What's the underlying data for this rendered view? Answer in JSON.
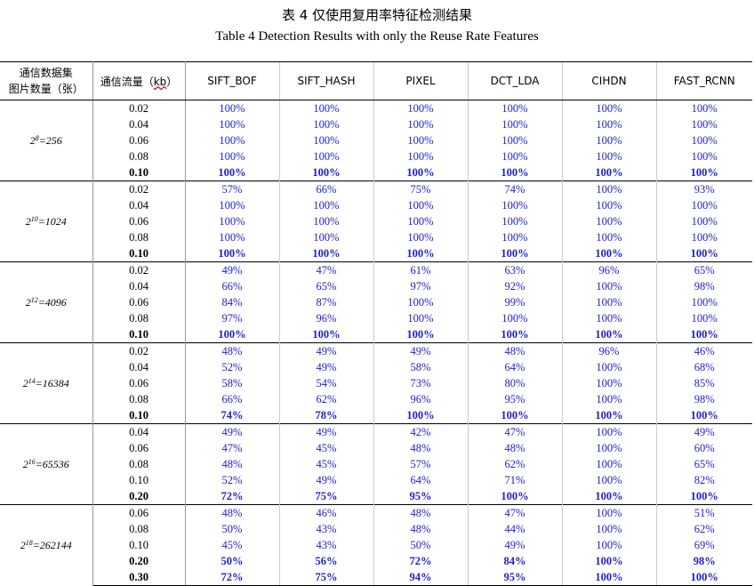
{
  "title_cn": "表 4 仅使用复用率特征检测结果",
  "title_en": "Table 4 Detection Results with only the Reuse Rate Features",
  "headers": {
    "desc_line1": "通信数据集",
    "desc_line2": "图片数量（张）",
    "traffic_label": "通信流量（",
    "traffic_unit": "kb",
    "traffic_close": "）",
    "methods": [
      "SIFT_BOF",
      "SIFT_HASH",
      "PIXEL",
      "DCT_LDA",
      "CIHDN",
      "FAST_RCNN"
    ]
  },
  "groups": [
    {
      "set_base": "2",
      "set_exp": "8",
      "set_rest": "=256",
      "rows": [
        {
          "traffic": "0.02",
          "bold": false,
          "values": [
            "100%",
            "100%",
            "100%",
            "100%",
            "100%",
            "100%"
          ]
        },
        {
          "traffic": "0.04",
          "bold": false,
          "values": [
            "100%",
            "100%",
            "100%",
            "100%",
            "100%",
            "100%"
          ]
        },
        {
          "traffic": "0.06",
          "bold": false,
          "values": [
            "100%",
            "100%",
            "100%",
            "100%",
            "100%",
            "100%"
          ]
        },
        {
          "traffic": "0.08",
          "bold": false,
          "values": [
            "100%",
            "100%",
            "100%",
            "100%",
            "100%",
            "100%"
          ]
        },
        {
          "traffic": "0.10",
          "bold": true,
          "values": [
            "100%",
            "100%",
            "100%",
            "100%",
            "100%",
            "100%"
          ]
        }
      ]
    },
    {
      "set_base": "2",
      "set_exp": "10",
      "set_rest": "=1024",
      "rows": [
        {
          "traffic": "0.02",
          "bold": false,
          "values": [
            "57%",
            "66%",
            "75%",
            "74%",
            "100%",
            "93%"
          ]
        },
        {
          "traffic": "0.04",
          "bold": false,
          "values": [
            "100%",
            "100%",
            "100%",
            "100%",
            "100%",
            "100%"
          ]
        },
        {
          "traffic": "0.06",
          "bold": false,
          "values": [
            "100%",
            "100%",
            "100%",
            "100%",
            "100%",
            "100%"
          ]
        },
        {
          "traffic": "0.08",
          "bold": false,
          "values": [
            "100%",
            "100%",
            "100%",
            "100%",
            "100%",
            "100%"
          ]
        },
        {
          "traffic": "0.10",
          "bold": true,
          "values": [
            "100%",
            "100%",
            "100%",
            "100%",
            "100%",
            "100%"
          ]
        }
      ]
    },
    {
      "set_base": "2",
      "set_exp": "12",
      "set_rest": "=4096",
      "rows": [
        {
          "traffic": "0.02",
          "bold": false,
          "values": [
            "49%",
            "47%",
            "61%",
            "63%",
            "96%",
            "65%"
          ]
        },
        {
          "traffic": "0.04",
          "bold": false,
          "values": [
            "66%",
            "65%",
            "97%",
            "92%",
            "100%",
            "98%"
          ]
        },
        {
          "traffic": "0.06",
          "bold": false,
          "values": [
            "84%",
            "87%",
            "100%",
            "99%",
            "100%",
            "100%"
          ]
        },
        {
          "traffic": "0.08",
          "bold": false,
          "values": [
            "97%",
            "96%",
            "100%",
            "100%",
            "100%",
            "100%"
          ]
        },
        {
          "traffic": "0.10",
          "bold": true,
          "values": [
            "100%",
            "100%",
            "100%",
            "100%",
            "100%",
            "100%"
          ]
        }
      ]
    },
    {
      "set_base": "2",
      "set_exp": "14",
      "set_rest": "=16384",
      "rows": [
        {
          "traffic": "0.02",
          "bold": false,
          "values": [
            "48%",
            "49%",
            "49%",
            "48%",
            "96%",
            "46%"
          ]
        },
        {
          "traffic": "0.04",
          "bold": false,
          "values": [
            "52%",
            "49%",
            "58%",
            "64%",
            "100%",
            "68%"
          ]
        },
        {
          "traffic": "0.06",
          "bold": false,
          "values": [
            "58%",
            "54%",
            "73%",
            "80%",
            "100%",
            "85%"
          ]
        },
        {
          "traffic": "0.08",
          "bold": false,
          "values": [
            "66%",
            "62%",
            "96%",
            "95%",
            "100%",
            "98%"
          ]
        },
        {
          "traffic": "0.10",
          "bold": true,
          "values": [
            "74%",
            "78%",
            "100%",
            "100%",
            "100%",
            "100%"
          ]
        }
      ]
    },
    {
      "set_base": "2",
      "set_exp": "16",
      "set_rest": "=65536",
      "rows": [
        {
          "traffic": "0.04",
          "bold": false,
          "values": [
            "49%",
            "49%",
            "42%",
            "47%",
            "100%",
            "49%"
          ]
        },
        {
          "traffic": "0.06",
          "bold": false,
          "values": [
            "47%",
            "45%",
            "48%",
            "48%",
            "100%",
            "60%"
          ]
        },
        {
          "traffic": "0.08",
          "bold": false,
          "values": [
            "48%",
            "45%",
            "57%",
            "62%",
            "100%",
            "65%"
          ]
        },
        {
          "traffic": "0.10",
          "bold": false,
          "values": [
            "52%",
            "49%",
            "64%",
            "71%",
            "100%",
            "82%"
          ]
        },
        {
          "traffic": "0.20",
          "bold": true,
          "values": [
            "72%",
            "75%",
            "95%",
            "100%",
            "100%",
            "100%"
          ]
        }
      ]
    },
    {
      "set_base": "2",
      "set_exp": "18",
      "set_rest": "=262144",
      "rows": [
        {
          "traffic": "0.06",
          "bold": false,
          "values": [
            "48%",
            "46%",
            "48%",
            "47%",
            "100%",
            "51%"
          ]
        },
        {
          "traffic": "0.08",
          "bold": false,
          "values": [
            "50%",
            "43%",
            "48%",
            "44%",
            "100%",
            "62%"
          ]
        },
        {
          "traffic": "0.10",
          "bold": false,
          "values": [
            "45%",
            "43%",
            "50%",
            "49%",
            "100%",
            "69%"
          ]
        },
        {
          "traffic": "0.20",
          "bold": true,
          "values": [
            "50%",
            "56%",
            "72%",
            "84%",
            "100%",
            "98%"
          ]
        },
        {
          "traffic": "0.30",
          "bold": true,
          "values": [
            "72%",
            "75%",
            "94%",
            "95%",
            "100%",
            "100%"
          ]
        }
      ]
    }
  ]
}
